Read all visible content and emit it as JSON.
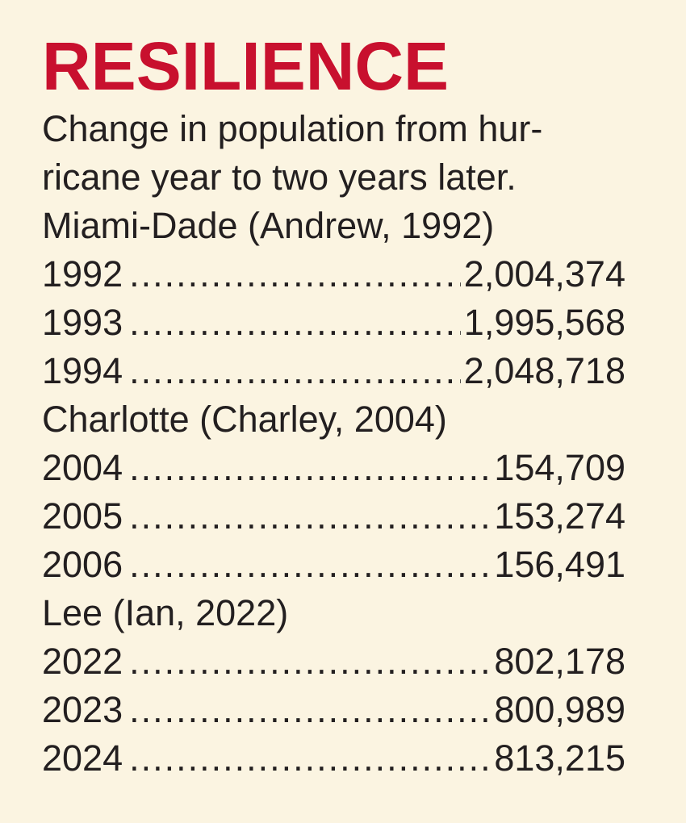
{
  "title": "RESILIENCE",
  "subtitle_line1": "Change in population from hur-",
  "subtitle_line2": "ricane year to two years later.",
  "groups": [
    {
      "label": "Miami-Dade (Andrew, 1992)",
      "rows": [
        {
          "year": "1992",
          "value": "2,004,374"
        },
        {
          "year": "1993",
          "value": "1,995,568"
        },
        {
          "year": "1994",
          "value": "2,048,718"
        }
      ]
    },
    {
      "label": "Charlotte (Charley, 2004)",
      "rows": [
        {
          "year": "2004",
          "value": "154,709"
        },
        {
          "year": "2005",
          "value": "153,274"
        },
        {
          "year": "2006",
          "value": "156,491"
        }
      ]
    },
    {
      "label": "Lee (Ian, 2022)",
      "rows": [
        {
          "year": "2022",
          "value": "802,178"
        },
        {
          "year": "2023",
          "value": "800,989"
        },
        {
          "year": "2024",
          "value": "813,215"
        }
      ]
    }
  ],
  "colors": {
    "background": "#fbf4e1",
    "title": "#c8102e",
    "text": "#231f20"
  }
}
